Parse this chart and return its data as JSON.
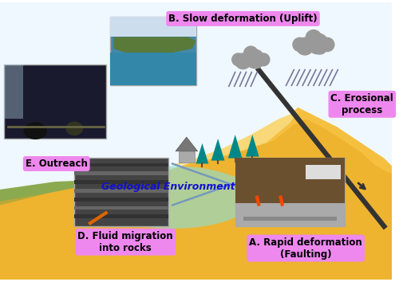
{
  "bg_color": "#ffffff",
  "labels": {
    "A": "A. Rapid deformation\n(Faulting)",
    "B": "B. Slow deformation (Uplift)",
    "C": "C. Erosional\nprocess",
    "D": "D. Fluid migration\ninto rocks",
    "E": "E. Outreach",
    "geo": "Geological Environment"
  },
  "label_bg_color": "#ee88ee",
  "geo_text_color": "#1111cc",
  "sky_color": "#f0f8ff",
  "mountain_yellow": "#f5c040",
  "mountain_light": "#f8d878",
  "mountain_dark": "#e8a820",
  "ground_green": "#8baa50",
  "water_teal": "#a0d8d8",
  "ellipse_color": "#90ddd0",
  "fault_dark": "#333333",
  "fault_light": "#7799bb",
  "tree_color": "#008888",
  "cloud_color": "#999999",
  "rain_color": "#777799",
  "house_roof": "#777777",
  "house_wall": "#aaaaaa",
  "photo_E_color": "#1a1a2e",
  "photo_B_color": "#4488aa",
  "photo_D_color": "#444444",
  "photo_A_color": "#8B7050"
}
